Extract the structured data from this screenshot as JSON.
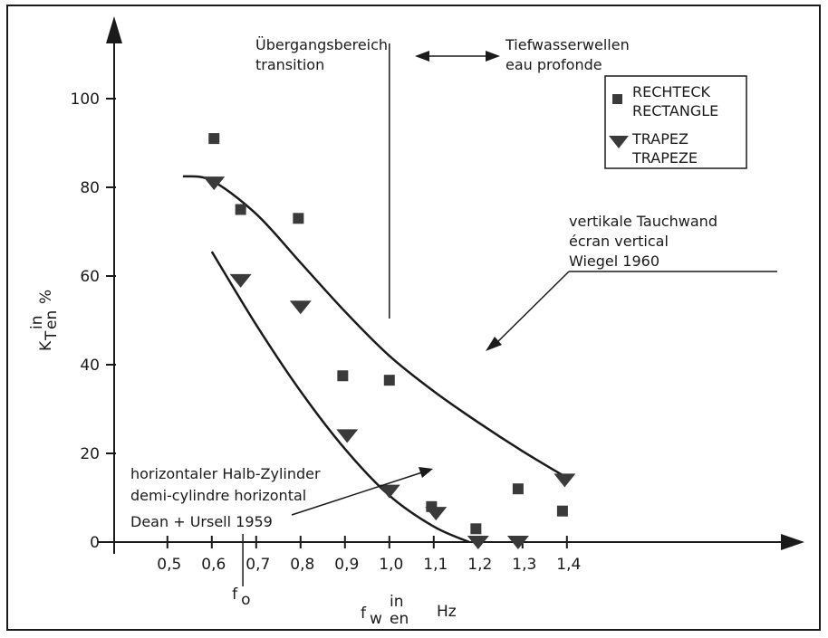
{
  "chart_data": {
    "type": "scatter",
    "xlim": [
      0.45,
      1.5
    ],
    "ylim": [
      0,
      110
    ],
    "x_ticks": [
      0.5,
      0.6,
      0.7,
      0.8,
      0.9,
      1.0,
      1.1,
      1.2,
      1.3,
      1.4
    ],
    "x_tick_labels": [
      "0,5",
      "0,6",
      "0,7",
      "0,8",
      "0,9",
      "1,0",
      "1,1",
      "1,2",
      "1,3",
      "1,4"
    ],
    "y_ticks": [
      0,
      20,
      40,
      60,
      80,
      100
    ],
    "y_tick_labels": [
      "0",
      "20",
      "40",
      "60",
      "80",
      "100"
    ],
    "x_axis_label": {
      "main": "f",
      "sub": "w",
      "in": "in",
      "en": "en",
      "unit": "Hz"
    },
    "y_axis_label": {
      "main": "K",
      "sub": "T",
      "in": "in",
      "en": "en",
      "unit": "%"
    },
    "f0_label": {
      "main": "f",
      "sub": "o",
      "x": 0.67
    },
    "grid": false,
    "legend": {
      "position": "top-right",
      "entries": [
        {
          "marker": "square",
          "line1": "RECHTECK",
          "line2": "RECTANGLE"
        },
        {
          "marker": "triangle-down",
          "line1": "TRAPEZ",
          "line2": "TRAPEZE"
        }
      ]
    },
    "series": [
      {
        "name": "RECHTECK / RECTANGLE",
        "marker": "square",
        "points": [
          [
            0.605,
            91
          ],
          [
            0.665,
            75
          ],
          [
            0.795,
            73
          ],
          [
            0.895,
            37.5
          ],
          [
            1.0,
            36.5
          ],
          [
            1.095,
            8
          ],
          [
            1.195,
            3
          ],
          [
            1.29,
            12
          ],
          [
            1.39,
            7
          ]
        ]
      },
      {
        "name": "TRAPEZ / TRAPEZE",
        "marker": "triangle-down",
        "points": [
          [
            0.605,
            81
          ],
          [
            0.665,
            59
          ],
          [
            0.8,
            53
          ],
          [
            0.905,
            24
          ],
          [
            1.0,
            11.5
          ],
          [
            1.105,
            6.5
          ],
          [
            1.2,
            0
          ],
          [
            1.29,
            0
          ],
          [
            1.395,
            14
          ]
        ]
      }
    ],
    "curves": [
      {
        "label_lines": [
          "vertikale Tauchwand",
          "écran vertical",
          "Wiegel 1960"
        ],
        "points": [
          [
            0.535,
            82.5
          ],
          [
            0.6,
            81.5
          ],
          [
            0.7,
            74
          ],
          [
            0.8,
            63
          ],
          [
            0.9,
            52
          ],
          [
            1.0,
            42
          ],
          [
            1.1,
            34
          ],
          [
            1.2,
            27
          ],
          [
            1.3,
            20.5
          ],
          [
            1.4,
            14.5
          ]
        ]
      },
      {
        "label_lines": [
          "horizontaler Halb-Zylinder",
          "demi-cylindre horizontal",
          "Dean + Ursell 1959"
        ],
        "points": [
          [
            0.6,
            65.5
          ],
          [
            0.7,
            49
          ],
          [
            0.8,
            34
          ],
          [
            0.9,
            21
          ],
          [
            1.0,
            10.5
          ],
          [
            1.1,
            3.5
          ],
          [
            1.18,
            0
          ]
        ]
      }
    ],
    "regions": {
      "left": [
        "Übergangsbereich",
        "transition"
      ],
      "right": [
        "Tiefwasserwellen",
        "eau profonde"
      ],
      "boundary_x": 1.0
    }
  }
}
